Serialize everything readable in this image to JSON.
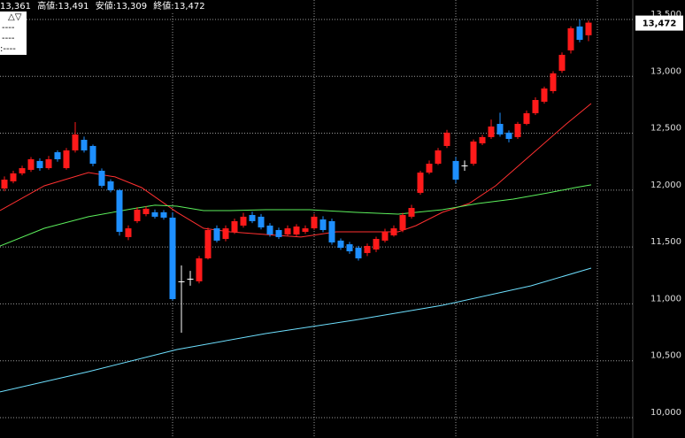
{
  "chart_data": {
    "type": "candlestick",
    "header": {
      "open": "13,361",
      "high": "高値:13,491",
      "low": "安値:13,309",
      "close": "終値:13,472"
    },
    "legend": [
      "△▽",
      "----",
      "----",
      ":----"
    ],
    "current_price_label": "13,472",
    "ylim": [
      9821,
      13671
    ],
    "yticks": [
      {
        "value": 10000,
        "label": "10,000"
      },
      {
        "value": 10500,
        "label": "10,500"
      },
      {
        "value": 11000,
        "label": "11,000"
      },
      {
        "value": 11500,
        "label": "11,500"
      },
      {
        "value": 12000,
        "label": "12,000"
      },
      {
        "value": 12500,
        "label": "12,500"
      },
      {
        "value": 13000,
        "label": "13,000"
      },
      {
        "value": 13500,
        "label": "13,500"
      }
    ],
    "grid": true,
    "up_color": "#ff1a1a",
    "down_color": "#1e8fff",
    "flat_color": "#ffffff",
    "open": [
      12014,
      12077,
      12147,
      12178,
      12256,
      12193,
      12333,
      12193,
      12349,
      12442,
      12388,
      12170,
      12077,
      11999,
      11587,
      11727,
      11789,
      11805,
      11805,
      11758,
      11198,
      11221,
      11198,
      11400,
      11664,
      11571,
      11633,
      11688,
      11781,
      11766,
      11688,
      11649,
      11610,
      11610,
      11633,
      11664,
      11742,
      11727,
      11556,
      11524,
      11493,
      11447,
      11478,
      11556,
      11602,
      11649,
      11766,
      11976,
      12154,
      12232,
      12388,
      12256,
      12217,
      12232,
      12411,
      12466,
      12582,
      12505,
      12466,
      12582,
      12676,
      12777,
      12870,
      13049,
      13228,
      13438,
      13361
    ],
    "high": [
      12120,
      12170,
      12215,
      12290,
      12280,
      12300,
      12350,
      12370,
      12598,
      12470,
      12400,
      12190,
      12095,
      12010,
      11690,
      11850,
      11860,
      11830,
      11825,
      11805,
      11338,
      11290,
      11420,
      11670,
      11690,
      11690,
      11750,
      11800,
      11810,
      11790,
      11710,
      11670,
      11690,
      11700,
      11690,
      11790,
      11770,
      11750,
      11575,
      11545,
      11510,
      11530,
      11590,
      11660,
      11690,
      11800,
      11870,
      12170,
      12260,
      12370,
      12530,
      12290,
      12260,
      12445,
      12485,
      12620,
      12680,
      12525,
      12600,
      12700,
      12815,
      12910,
      13045,
      13210,
      13440,
      13500,
      13491
    ],
    "low": [
      11990,
      12060,
      12130,
      12160,
      12170,
      12180,
      12250,
      12180,
      12330,
      12330,
      12210,
      12020,
      11980,
      11600,
      11560,
      11710,
      11770,
      11750,
      11740,
      11030,
      10747,
      11160,
      11180,
      11390,
      11540,
      11550,
      11615,
      11670,
      11710,
      11655,
      11590,
      11570,
      11595,
      11595,
      11615,
      11650,
      11630,
      11520,
      11475,
      11440,
      11380,
      11420,
      11455,
      11540,
      11590,
      11630,
      11750,
      11960,
      12140,
      12220,
      12370,
      12060,
      12170,
      12215,
      12395,
      12450,
      12470,
      12420,
      12450,
      12570,
      12660,
      12760,
      12850,
      13030,
      13200,
      13300,
      13309
    ],
    "close": [
      12092,
      12147,
      12193,
      12271,
      12193,
      12271,
      12271,
      12349,
      12489,
      12349,
      12232,
      12038,
      11999,
      11633,
      11664,
      11828,
      11836,
      11766,
      11758,
      11042,
      11198,
      11221,
      11400,
      11649,
      11556,
      11664,
      11727,
      11766,
      11727,
      11672,
      11610,
      11587,
      11664,
      11680,
      11664,
      11766,
      11649,
      11540,
      11493,
      11462,
      11400,
      11509,
      11571,
      11633,
      11664,
      11781,
      11843,
      12154,
      12232,
      12349,
      12505,
      12092,
      12217,
      12427,
      12466,
      12559,
      12489,
      12450,
      12582,
      12676,
      12792,
      12893,
      13026,
      13189,
      13422,
      13321,
      13472
    ],
    "moving_averages": [
      {
        "color": "#ff3030",
        "x": [
          -0.5,
          4.5,
          9.5,
          12.5,
          15.5,
          19.5,
          22.5,
          25.5,
          29.5,
          33.5,
          37.5,
          41.5,
          44.5,
          46.5,
          49.5,
          52.5,
          55.5,
          59.5,
          63.5,
          66.3
        ],
        "values": [
          11820,
          12038,
          12154,
          12116,
          12022,
          11805,
          11664,
          11633,
          11610,
          11587,
          11633,
          11633,
          11633,
          11688,
          11805,
          11882,
          12038,
          12310,
          12582,
          12761
        ]
      },
      {
        "color": "#5cf05c",
        "x": [
          -0.5,
          4.5,
          9.5,
          14.5,
          17,
          19.5,
          22.5,
          25.5,
          29.5,
          34.5,
          39.5,
          44.5,
          49.5,
          53.5,
          57.5,
          61.5,
          64.5,
          66.3
        ],
        "values": [
          11509,
          11664,
          11766,
          11836,
          11867,
          11859,
          11820,
          11820,
          11828,
          11828,
          11805,
          11789,
          11828,
          11882,
          11921,
          11976,
          12022,
          12046
        ]
      },
      {
        "color": "#6ee0ff",
        "x": [
          -0.5,
          9.5,
          19.5,
          29.5,
          39.5,
          49.5,
          59.5,
          66.3
        ],
        "values": [
          10226,
          10404,
          10599,
          10739,
          10856,
          10988,
          11159,
          11314
        ]
      }
    ]
  }
}
